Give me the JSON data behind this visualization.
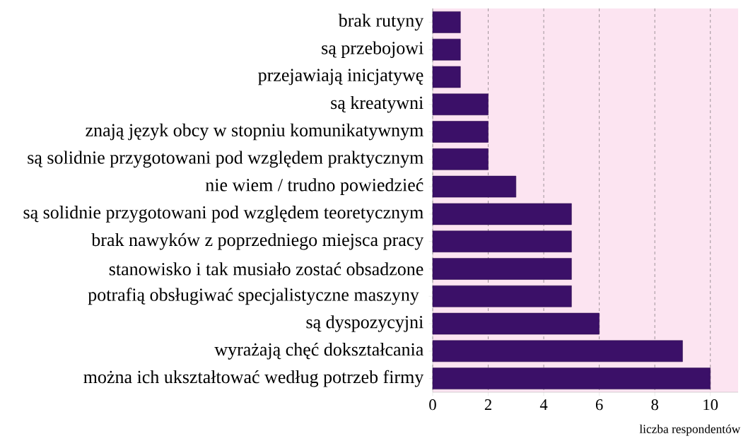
{
  "chart_data": {
    "type": "bar",
    "orientation": "horizontal",
    "xlabel": "liczba respondentów",
    "categories": [
      "brak rutyny",
      "są przebojowi",
      "przejawiają inicjatywę",
      "są kreatywni",
      "znają język obcy w stopniu komunikatywnym",
      "są solidnie przygotowani pod względem praktycznym",
      "nie wiem / trudno powiedzieć",
      "są solidnie przygotowani pod względem teoretycznym",
      "brak nawyków z poprzedniego miejsca pracy",
      "stanowisko i tak musiało zostać obsadzone",
      "potrafią obsługiwać specjalistyczne maszyny ",
      "są dyspozycyjni",
      "wyrażają chęć dokształcania",
      "można ich ukształtować według potrzeb firmy"
    ],
    "values": [
      1,
      1,
      1,
      2,
      2,
      2,
      3,
      5,
      5,
      5,
      5,
      6,
      9,
      10
    ],
    "color": "#3b1068",
    "xlim": [
      0,
      11
    ],
    "xticks": [
      0,
      2,
      4,
      6,
      8,
      10
    ],
    "grid": "x"
  }
}
